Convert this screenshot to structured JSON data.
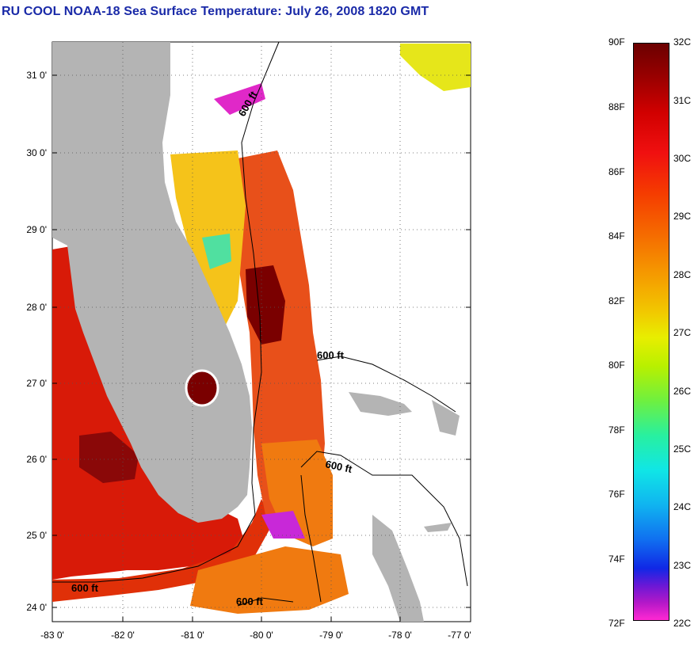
{
  "title": "RU COOL  NOAA-18  Sea Surface Temperature:  July 26, 2008 1820 GMT",
  "axes": {
    "y_ticks": [
      "31 0'",
      "30 0'",
      "29 0'",
      "28 0'",
      "27 0'",
      "26 0'",
      "25 0'",
      "24 0'"
    ],
    "x_ticks": [
      "-83 0'",
      "-82 0'",
      "-81 0'",
      "-80 0'",
      "-79 0'",
      "-78 0'",
      "-77 0'"
    ]
  },
  "contour_labels": [
    "600 ft",
    "600 ft",
    "600 ft",
    "600 ft",
    "600 ft"
  ],
  "colorbar": {
    "fahrenheit": [
      "90F",
      "88F",
      "86F",
      "84F",
      "82F",
      "80F",
      "78F",
      "76F",
      "74F",
      "72F"
    ],
    "celsius": [
      "32C",
      "31C",
      "30C",
      "29C",
      "28C",
      "27C",
      "26C",
      "25C",
      "24C",
      "23C",
      "22C"
    ]
  },
  "colors": {
    "title": "#1a2aa8",
    "land": "#b4b4b4",
    "warm": "#d81a08",
    "hot": "#7a0000",
    "mid": "#f07a10",
    "cool": "#f5d21a"
  }
}
